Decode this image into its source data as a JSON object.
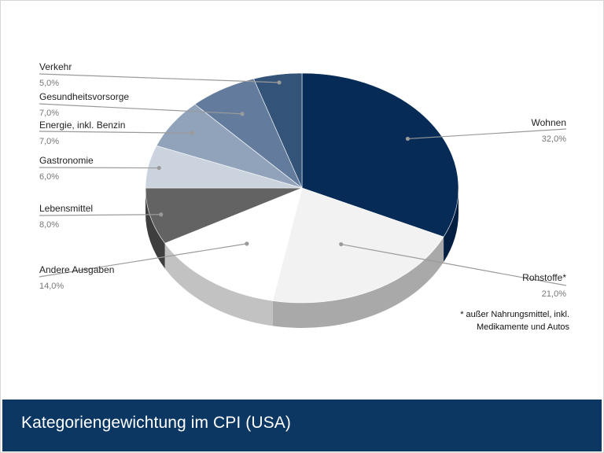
{
  "footer": {
    "title": "Kategoriengewichtung im CPI (USA)"
  },
  "chart_data": {
    "type": "pie",
    "style": "3d",
    "title": "Kategoriengewichtung im CPI (USA)",
    "slices": [
      {
        "label": "Wohnen",
        "value": 32.0,
        "display": "32,0%",
        "color": "#062b57",
        "side": "#041f42"
      },
      {
        "label": "Rohstoffe*",
        "value": 21.0,
        "display": "21,0%",
        "color": "#f2f2f2",
        "side": "#a9a9a9"
      },
      {
        "label": "Andere Ausgaben",
        "value": 14.0,
        "display": "14,0%",
        "color": "#ffffff",
        "side": "#c2c2c2"
      },
      {
        "label": "Lebensmittel",
        "value": 8.0,
        "display": "8,0%",
        "color": "#636363",
        "side": "#3e3e3e"
      },
      {
        "label": "Gastronomie",
        "value": 6.0,
        "display": "6,0%",
        "color": "#cbd3de",
        "side": "#9aa4b2"
      },
      {
        "label": "Energie, inkl. Benzin",
        "value": 7.0,
        "display": "7,0%",
        "color": "#91a3ba",
        "side": "#6c7d95"
      },
      {
        "label": "Gesundheitsvorsorge",
        "value": 7.0,
        "display": "7,0%",
        "color": "#637b9c",
        "side": "#485e7c"
      },
      {
        "label": "Verkehr",
        "value": 5.0,
        "display": "5,0%",
        "color": "#345378",
        "side": "#243c5a"
      }
    ],
    "footnote": [
      "* außer Nahrungsmittel, inkl.",
      "Medikamente und Autos"
    ]
  }
}
